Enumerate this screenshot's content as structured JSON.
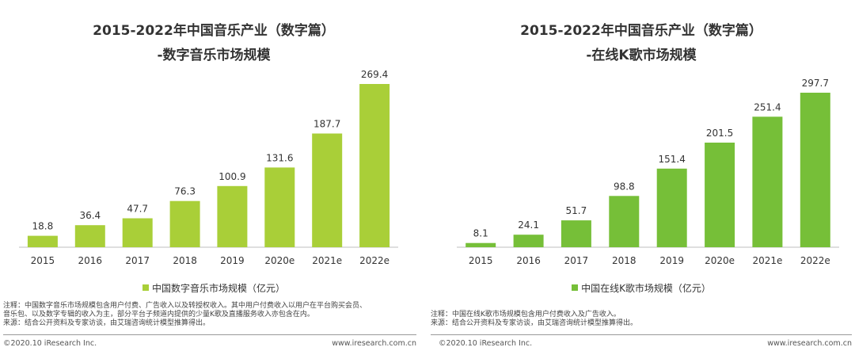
{
  "left": {
    "title_line1": "2015-2022年中国音乐产业（数字篇）",
    "title_line2": "-数字音乐市场规模",
    "legend": "中国数字音乐市场规模（亿元）",
    "note_line1": "注释：中国数字音乐市场规模包含用户付费、广告收入以及转授权收入。其中用户付费收入以用户在平台购买会员、",
    "note_line2": "音乐包、以及数字专辑的收入为主，部分平台子频道内提供的少量K歌及直播服务收入亦包含在内。",
    "source": "来源：结合公开资料及专家访谈，由艾瑞咨询统计模型推算得出。",
    "copyright": "©2020.10 iResearch Inc.",
    "website": "www.iresearch.com.cn"
  },
  "right": {
    "title_line1": "2015-2022年中国音乐产业（数字篇）",
    "title_line2": "-在线K歌市场规模",
    "legend": "中国在线K歌市场规模（亿元）",
    "note_line1": "注释：中国在线K歌市场规模包含用户付费收入及广告收入。",
    "source": "来源：结合公开资料及专家访谈，由艾瑞咨询统计模型推算得出。",
    "copyright": "©2020.10 iResearch Inc.",
    "website": "www.iresearch.com.cn"
  },
  "colors": {
    "left_bar": "#a9cf38",
    "right_bar": "#76bf38",
    "axis": "#bfbfbf",
    "text": "#333333"
  },
  "chart_data": [
    {
      "type": "bar",
      "title": "2015-2022年中国音乐产业（数字篇） -数字音乐市场规模",
      "categories": [
        "2015",
        "2016",
        "2017",
        "2018",
        "2019",
        "2020e",
        "2021e",
        "2022e"
      ],
      "values": [
        18.8,
        36.4,
        47.7,
        76.3,
        100.9,
        131.6,
        187.7,
        269.4
      ],
      "value_labels": [
        "18.8",
        "36.4",
        "47.7",
        "76.3",
        "100.9",
        "131.6",
        "187.7",
        "269.4"
      ],
      "series_name": "中国数字音乐市场规模（亿元）",
      "xlabel": "",
      "ylabel": "",
      "ylim": [
        0,
        269.4
      ],
      "legend_position": "bottom-center"
    },
    {
      "type": "bar",
      "title": "2015-2022年中国音乐产业（数字篇） -在线K歌市场规模",
      "categories": [
        "2015",
        "2016",
        "2017",
        "2018",
        "2019",
        "2020e",
        "2021e",
        "2022e"
      ],
      "values": [
        8.1,
        24.1,
        51.7,
        98.8,
        151.4,
        201.5,
        251.4,
        297.7
      ],
      "value_labels": [
        "8.1",
        "24.1",
        "51.7",
        "98.8",
        "151.4",
        "201.5",
        "251.4",
        "297.7"
      ],
      "series_name": "中国在线K歌市场规模（亿元）",
      "xlabel": "",
      "ylabel": "",
      "ylim": [
        0,
        297.7
      ],
      "legend_position": "bottom-center"
    }
  ]
}
